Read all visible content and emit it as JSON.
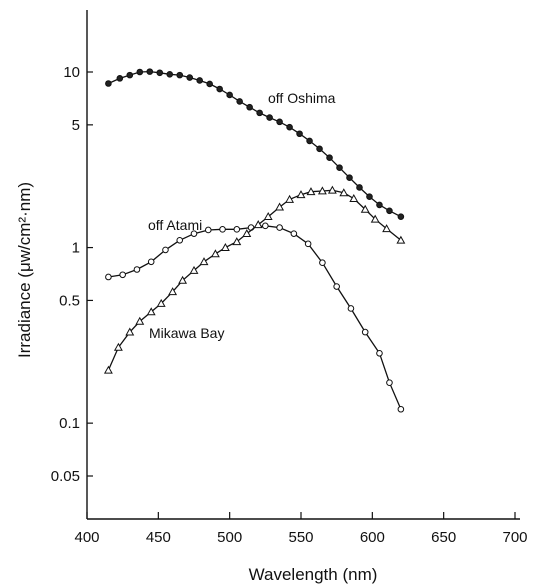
{
  "chart_data": {
    "type": "line",
    "title": "",
    "xlabel": "Wavelength (nm)",
    "ylabel": "Irradiance (μw/cm²·nm)",
    "xlim": [
      400,
      700
    ],
    "ylim": [
      0.03,
      20
    ],
    "y_scale": "log",
    "grid": false,
    "legend": "inline labels",
    "x_ticks": [
      400,
      450,
      500,
      550,
      600,
      650,
      700
    ],
    "x_tick_labels": [
      "400",
      "450",
      "500",
      "550",
      "600",
      "650",
      "700"
    ],
    "y_ticks": [
      0.05,
      0.1,
      0.5,
      1,
      5,
      10
    ],
    "y_tick_labels": [
      "0.05",
      "0.1",
      "0.5",
      "1",
      "5",
      "10"
    ],
    "series": [
      {
        "name": "off Oshima",
        "marker": "filled-circle",
        "x": [
          415,
          423,
          430,
          437,
          444,
          451,
          458,
          465,
          472,
          479,
          486,
          493,
          500,
          507,
          514,
          521,
          528,
          535,
          542,
          549,
          556,
          563,
          570,
          577,
          584,
          591,
          598,
          605,
          612,
          620
        ],
        "y": [
          8.6,
          9.2,
          9.6,
          10.0,
          10.05,
          9.9,
          9.7,
          9.6,
          9.3,
          8.95,
          8.55,
          8.0,
          7.4,
          6.8,
          6.3,
          5.85,
          5.5,
          5.2,
          4.85,
          4.45,
          4.05,
          3.65,
          3.25,
          2.85,
          2.5,
          2.2,
          1.95,
          1.75,
          1.62,
          1.5
        ]
      },
      {
        "name": "off Atami",
        "marker": "open-circle",
        "x": [
          415,
          425,
          435,
          445,
          455,
          465,
          475,
          485,
          495,
          505,
          515,
          525,
          535,
          545,
          555,
          565,
          575,
          585,
          595,
          605,
          612,
          620
        ],
        "y": [
          0.68,
          0.7,
          0.75,
          0.83,
          0.97,
          1.1,
          1.2,
          1.26,
          1.27,
          1.27,
          1.3,
          1.33,
          1.3,
          1.2,
          1.05,
          0.82,
          0.6,
          0.45,
          0.33,
          0.25,
          0.17,
          0.12
        ]
      },
      {
        "name": "Mikawa Bay",
        "marker": "open-triangle",
        "x": [
          415,
          422,
          430,
          437,
          445,
          452,
          460,
          467,
          475,
          482,
          490,
          497,
          505,
          512,
          520,
          527,
          535,
          542,
          550,
          557,
          565,
          572,
          580,
          587,
          595,
          602,
          610,
          620
        ],
        "y": [
          0.2,
          0.27,
          0.33,
          0.38,
          0.43,
          0.48,
          0.56,
          0.65,
          0.74,
          0.83,
          0.92,
          1.0,
          1.08,
          1.2,
          1.35,
          1.5,
          1.7,
          1.88,
          2.0,
          2.08,
          2.1,
          2.12,
          2.05,
          1.9,
          1.65,
          1.45,
          1.28,
          1.1
        ]
      }
    ]
  }
}
